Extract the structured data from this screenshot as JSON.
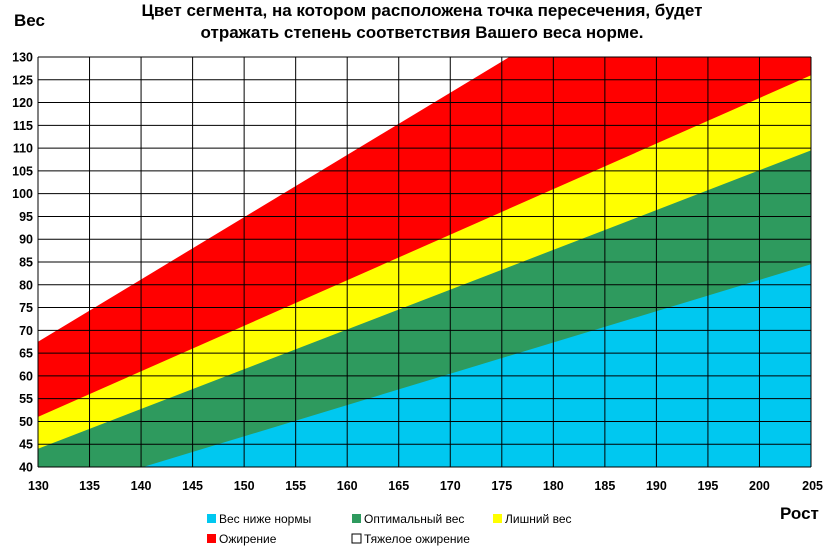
{
  "chart_data": {
    "type": "area",
    "title": [
      "Цвет сегмента, на котором расположена точка пересечения, будет",
      "отражать степень соответствия Вашего веса норме."
    ],
    "ylabel": "Вес",
    "xlabel": "Рост",
    "xlim": [
      130,
      205
    ],
    "ylim": [
      40,
      130
    ],
    "x_ticks": [
      130,
      135,
      140,
      145,
      150,
      155,
      160,
      165,
      170,
      175,
      180,
      185,
      190,
      195,
      200,
      205
    ],
    "y_ticks": [
      40,
      45,
      50,
      55,
      60,
      65,
      70,
      75,
      80,
      85,
      90,
      95,
      100,
      105,
      110,
      115,
      120,
      125,
      130
    ],
    "grid": true,
    "x": [
      130,
      205
    ],
    "series": [
      {
        "name": "Вес ниже нормы",
        "color": "#00c8f0",
        "upper": [
          33,
          84.5
        ]
      },
      {
        "name": "Оптимальный вес",
        "color": "#2e9a5e",
        "upper": [
          44,
          109.5
        ]
      },
      {
        "name": "Лишний вес",
        "color": "#ffff00",
        "upper": [
          51,
          126
        ]
      },
      {
        "name": "Ожирение",
        "color": "#ff0000",
        "upper": [
          67.5,
          170
        ]
      },
      {
        "name": "Тяжелое ожирение",
        "color": "#ffffff"
      }
    ],
    "legend_position": "bottom",
    "legend_rows": [
      [
        0,
        1,
        2
      ],
      [
        3,
        4
      ]
    ]
  }
}
